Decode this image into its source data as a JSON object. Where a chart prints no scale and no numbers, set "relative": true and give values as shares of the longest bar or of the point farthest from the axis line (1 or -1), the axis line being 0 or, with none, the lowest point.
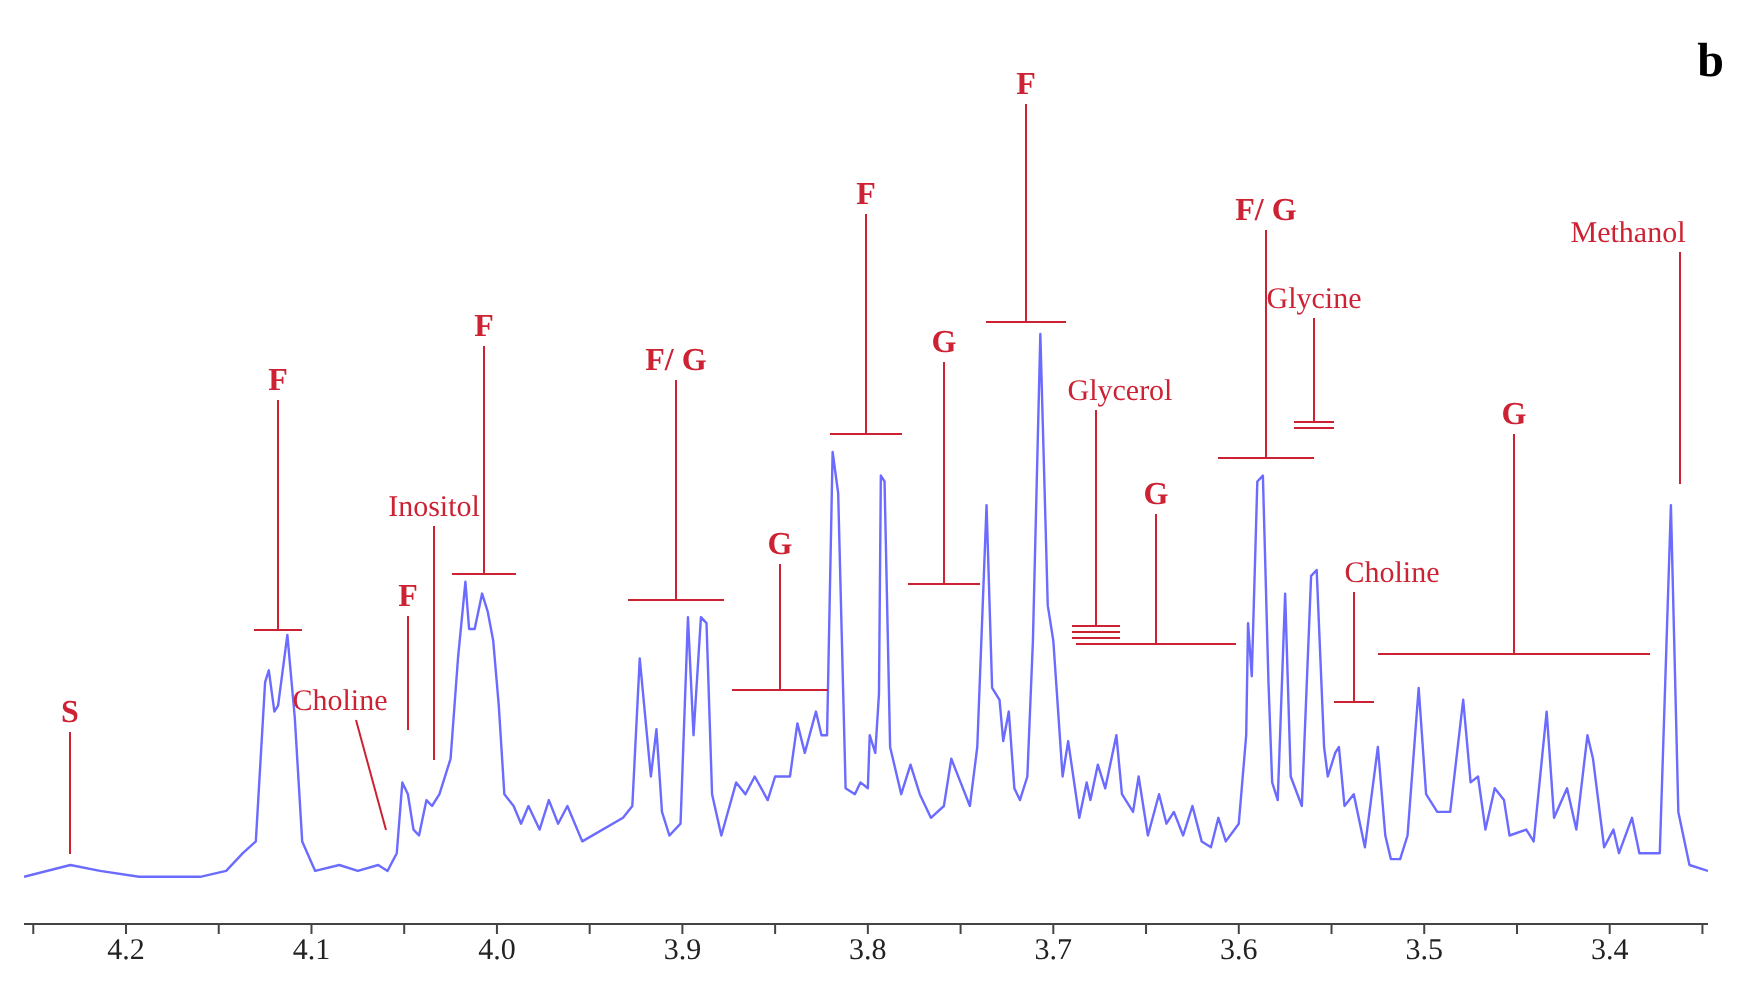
{
  "chart_data": {
    "type": "line",
    "relative": true,
    "xlim": [
      4.255,
      3.347
    ],
    "xticks": [
      {
        "value": 4.25,
        "label": null
      },
      4.2,
      {
        "value": 4.15,
        "label": null
      },
      4.1,
      {
        "value": 4.05,
        "label": null
      },
      {
        "value": 4,
        "label": "4.0"
      },
      {
        "value": 3.95,
        "label": null
      },
      3.9,
      {
        "value": 3.85,
        "label": null
      },
      3.8,
      {
        "value": 3.75,
        "label": null
      },
      3.7,
      {
        "value": 3.65,
        "label": null
      },
      3.6,
      {
        "value": 3.55,
        "label": null
      },
      3.5,
      {
        "value": 3.45,
        "label": null
      },
      3.4,
      {
        "value": 3.35,
        "label": null
      }
    ],
    "x": [
      4.255,
      4.23,
      4.214,
      4.193,
      4.16,
      4.146,
      4.137,
      4.13,
      4.125,
      4.123,
      4.12,
      4.118,
      4.113,
      4.109,
      4.105,
      4.098,
      4.085,
      4.075,
      4.064,
      4.059,
      4.054,
      4.051,
      4.048,
      4.045,
      4.042,
      4.038,
      4.035,
      4.031,
      4.025,
      4.021,
      4.017,
      4.015,
      4.012,
      4.008,
      4.005,
      4.002,
      3.999,
      3.996,
      3.991,
      3.987,
      3.983,
      3.977,
      3.972,
      3.967,
      3.962,
      3.954,
      3.932,
      3.927,
      3.923,
      3.917,
      3.914,
      3.911,
      3.907,
      3.901,
      3.897,
      3.894,
      3.89,
      3.887,
      3.884,
      3.879,
      3.871,
      3.866,
      3.861,
      3.854,
      3.85,
      3.842,
      3.838,
      3.834,
      3.828,
      3.825,
      3.822,
      3.819,
      3.816,
      3.812,
      3.807,
      3.804,
      3.8,
      3.799,
      3.796,
      3.794,
      3.793,
      3.791,
      3.788,
      3.782,
      3.777,
      3.772,
      3.766,
      3.759,
      3.755,
      3.75,
      3.745,
      3.741,
      3.736,
      3.733,
      3.729,
      3.727,
      3.724,
      3.721,
      3.718,
      3.714,
      3.711,
      3.707,
      3.703,
      3.7,
      3.695,
      3.692,
      3.686,
      3.682,
      3.68,
      3.676,
      3.672,
      3.666,
      3.663,
      3.657,
      3.654,
      3.649,
      3.643,
      3.639,
      3.635,
      3.63,
      3.625,
      3.62,
      3.615,
      3.611,
      3.607,
      3.6,
      3.596,
      3.595,
      3.593,
      3.59,
      3.587,
      3.584,
      3.582,
      3.579,
      3.575,
      3.572,
      3.566,
      3.561,
      3.558,
      3.554,
      3.552,
      3.548,
      3.546,
      3.543,
      3.538,
      3.532,
      3.525,
      3.521,
      3.518,
      3.513,
      3.509,
      3.503,
      3.499,
      3.493,
      3.486,
      3.479,
      3.475,
      3.471,
      3.467,
      3.462,
      3.457,
      3.454,
      3.445,
      3.441,
      3.434,
      3.43,
      3.423,
      3.418,
      3.412,
      3.409,
      3.403,
      3.398,
      3.395,
      3.388,
      3.384,
      3.373,
      3.367,
      3.363,
      3.357,
      3.347
    ],
    "series": [
      {
        "color": "#6b6bff",
        "values": [
          0.08,
          0.1,
          0.09,
          0.08,
          0.08,
          0.09,
          0.12,
          0.14,
          0.41,
          0.43,
          0.36,
          0.37,
          0.49,
          0.35,
          0.14,
          0.09,
          0.1,
          0.09,
          0.1,
          0.09,
          0.12,
          0.24,
          0.22,
          0.16,
          0.15,
          0.21,
          0.2,
          0.22,
          0.28,
          0.45,
          0.58,
          0.5,
          0.5,
          0.56,
          0.53,
          0.48,
          0.37,
          0.22,
          0.2,
          0.17,
          0.2,
          0.16,
          0.21,
          0.17,
          0.2,
          0.14,
          0.18,
          0.2,
          0.45,
          0.25,
          0.33,
          0.19,
          0.15,
          0.17,
          0.52,
          0.32,
          0.52,
          0.51,
          0.22,
          0.15,
          0.24,
          0.22,
          0.25,
          0.21,
          0.25,
          0.25,
          0.34,
          0.29,
          0.36,
          0.32,
          0.32,
          0.8,
          0.73,
          0.23,
          0.22,
          0.24,
          0.23,
          0.32,
          0.29,
          0.39,
          0.76,
          0.75,
          0.3,
          0.22,
          0.27,
          0.22,
          0.18,
          0.2,
          0.28,
          0.24,
          0.2,
          0.3,
          0.71,
          0.4,
          0.38,
          0.31,
          0.36,
          0.23,
          0.21,
          0.25,
          0.48,
          1.0,
          0.54,
          0.48,
          0.25,
          0.31,
          0.18,
          0.24,
          0.21,
          0.27,
          0.23,
          0.32,
          0.22,
          0.19,
          0.25,
          0.15,
          0.22,
          0.17,
          0.19,
          0.15,
          0.2,
          0.14,
          0.13,
          0.18,
          0.14,
          0.17,
          0.32,
          0.51,
          0.42,
          0.75,
          0.76,
          0.41,
          0.24,
          0.21,
          0.56,
          0.25,
          0.2,
          0.59,
          0.6,
          0.3,
          0.25,
          0.29,
          0.3,
          0.2,
          0.22,
          0.13,
          0.3,
          0.15,
          0.11,
          0.11,
          0.15,
          0.4,
          0.22,
          0.19,
          0.19,
          0.38,
          0.24,
          0.25,
          0.16,
          0.23,
          0.21,
          0.15,
          0.16,
          0.14,
          0.36,
          0.18,
          0.23,
          0.16,
          0.32,
          0.28,
          0.13,
          0.16,
          0.12,
          0.18,
          0.12,
          0.12,
          0.71,
          0.19,
          0.1,
          0.09
        ]
      }
    ],
    "annotations": [
      "S",
      "F",
      "Choline",
      "F",
      "Inositol",
      "F",
      "F/ G",
      "G",
      "F",
      "G",
      "F",
      "Glycerol",
      "G",
      "F/ G",
      "Glycine",
      "Choline",
      "G",
      "Methanol",
      "b"
    ]
  }
}
